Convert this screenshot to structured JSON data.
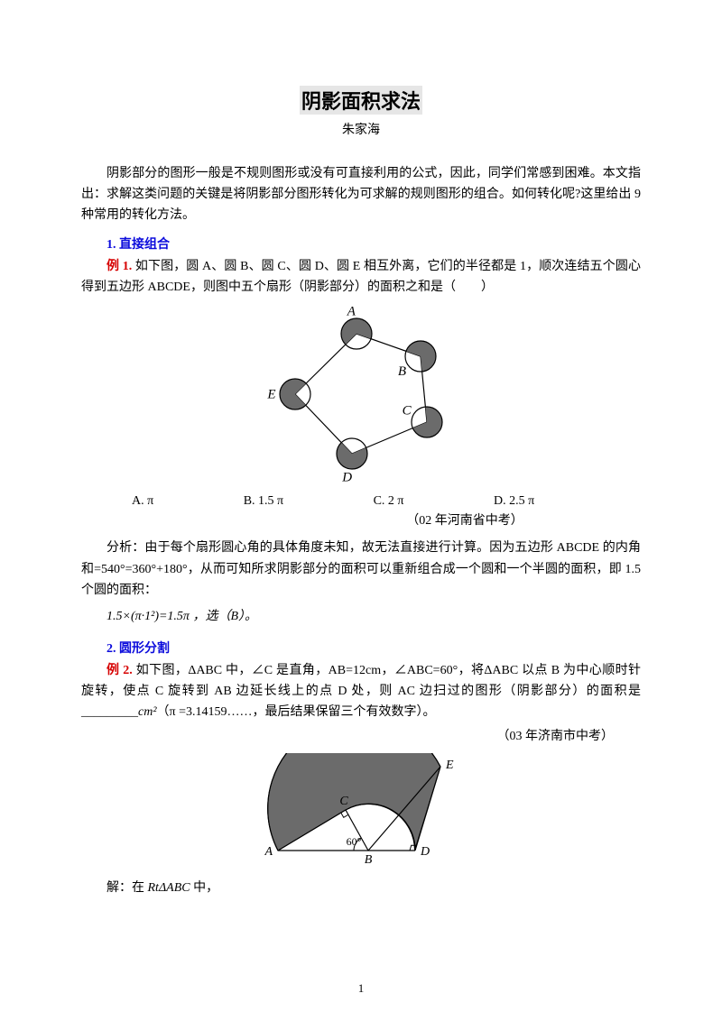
{
  "title": "阴影面积求法",
  "author": "朱家海",
  "intro": "阴影部分的图形一般是不规则图形或没有可直接利用的公式，因此，同学们常感到困难。本文指出：求解这类问题的关键是将阴影部分图形转化为可求解的规则图形的组合。如何转化呢?这里给出 9 种常用的转化方法。",
  "section1": {
    "heading": "1. 直接组合",
    "example_label": "例 1.",
    "example_text": " 如下图，圆 A、圆 B、圆 C、圆 D、圆 E 相互外离，它们的半径都是 1，顺次连结五个圆心得到五边形 ABCDE，则图中五个扇形（阴影部分）的面积之和是（　　）",
    "options": {
      "A": "A.  π",
      "B": "B. 1.5 π",
      "C": "C. 2 π",
      "D": "D. 2.5 π"
    },
    "citation": "（02 年河南省中考）",
    "analysis": "分析：由于每个扇形圆心角的具体角度未知，故无法直接进行计算。因为五边形 ABCDE 的内角和=540°=360°+180°，从而可知所求阴影部分的面积可以重新组合成一个圆和一个半圆的面积，即 1.5 个圆的面积：",
    "formula": "1.5×(π·1²)=1.5π ，选（B）。",
    "figure": {
      "circle_r": 17,
      "centers": {
        "A": [
          125,
          30
        ],
        "B": [
          196,
          55
        ],
        "C": [
          203,
          128
        ],
        "D": [
          120,
          163
        ],
        "E": [
          57,
          97
        ]
      },
      "stroke": "#000000",
      "fill": "#6b6b6b"
    }
  },
  "section2": {
    "heading": "2. 圆形分割",
    "example_label": "例 2.",
    "example_text": " 如下图，ΔABC 中，∠C 是直角，AB=12cm，∠ABC=60°，将ΔABC 以点 B 为中心顺时针旋转，使点 C 旋转到 AB 边延长线上的点 D 处，则 AC 边扫过的图形（阴影部分）的面积是_________",
    "example_text2": "（π =3.14159……，最后结果保留三个有效数字）。",
    "unit": "cm²",
    "citation": "（03 年济南市中考）",
    "solution_prefix": "解：在 ",
    "solution_rt": "RtΔABC",
    "solution_suffix": " 中，",
    "figure": {
      "A": [
        15,
        108
      ],
      "B": [
        115,
        108
      ],
      "D": [
        167,
        108
      ],
      "C": [
        90,
        63
      ],
      "E": [
        195,
        15
      ],
      "angle_label": "60°",
      "stroke": "#000000",
      "fill": "#6b6b6b"
    }
  },
  "page_number": "1"
}
